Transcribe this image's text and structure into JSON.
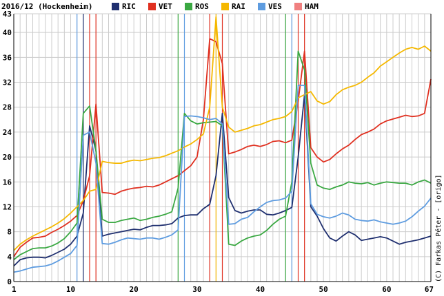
{
  "chart_data": {
    "type": "line",
    "title": "2016/12 (Hockenheim)",
    "credit": "(C) Farkas Péter - [origo]",
    "xlim": [
      1,
      67
    ],
    "ylim": [
      0,
      43
    ],
    "x_ticks": [
      1,
      10,
      20,
      30,
      40,
      50,
      60,
      67
    ],
    "y_ticks": [
      0,
      4,
      8,
      12,
      16,
      20,
      24,
      28,
      32,
      36,
      40,
      43
    ],
    "grid": true,
    "legend_position": "top",
    "series": [
      {
        "name": "RIC",
        "color": "#1f2f6f",
        "vlines": [
          12
        ],
        "values": [
          2.5,
          3.5,
          3.8,
          3.9,
          3.9,
          3.8,
          4.2,
          4.7,
          5.2,
          6.0,
          7.3,
          11.0,
          25.0,
          21.0,
          7.3,
          7.6,
          7.8,
          8.0,
          8.2,
          8.4,
          8.3,
          8.7,
          9.0,
          9.0,
          9.1,
          9.3,
          10.2,
          10.6,
          10.7,
          10.7,
          11.7,
          12.4,
          17.0,
          27.0,
          13.5,
          11.4,
          11.0,
          11.3,
          11.5,
          11.5,
          10.8,
          10.7,
          11.0,
          11.4,
          11.9,
          20.0,
          30.0,
          12.0,
          10.5,
          8.5,
          7.0,
          6.5,
          7.3,
          8.0,
          7.5,
          6.6,
          6.8,
          7.0,
          7.2,
          7.0,
          6.5,
          6.0,
          6.3,
          6.5,
          6.7,
          7.0,
          7.3
        ]
      },
      {
        "name": "VET",
        "color": "#e03020",
        "vlines": [
          13,
          14,
          32,
          34,
          46,
          47
        ],
        "values": [
          4.0,
          5.5,
          6.3,
          7.0,
          7.1,
          7.3,
          7.9,
          8.4,
          9.0,
          9.7,
          10.6,
          13.0,
          17.0,
          28.5,
          14.3,
          14.2,
          14.0,
          14.5,
          14.8,
          15.0,
          15.1,
          15.3,
          15.2,
          15.5,
          16.0,
          16.5,
          17.0,
          17.8,
          18.6,
          20.0,
          26.0,
          39.0,
          38.5,
          35.0,
          20.5,
          20.8,
          21.2,
          21.7,
          21.9,
          21.7,
          22.0,
          22.5,
          22.6,
          22.3,
          22.7,
          29.0,
          37.0,
          21.5,
          20.0,
          19.2,
          19.6,
          20.5,
          21.3,
          21.9,
          22.8,
          23.6,
          24.0,
          24.5,
          25.3,
          25.8,
          26.1,
          26.4,
          26.7,
          26.5,
          26.6,
          27.0,
          32.5
        ]
      },
      {
        "name": "ROS",
        "color": "#3aa842",
        "vlines": [
          27,
          44
        ],
        "values": [
          3.5,
          4.3,
          4.8,
          5.3,
          5.4,
          5.4,
          5.7,
          6.2,
          6.9,
          8.0,
          9.4,
          27.0,
          28.2,
          21.0,
          10.0,
          9.5,
          9.5,
          9.8,
          10.0,
          10.2,
          9.8,
          10.0,
          10.3,
          10.5,
          10.8,
          11.2,
          15.0,
          27.0,
          25.8,
          25.3,
          25.5,
          25.6,
          25.7,
          25.0,
          6.0,
          5.8,
          6.5,
          7.0,
          7.3,
          7.5,
          8.2,
          9.2,
          10.0,
          10.5,
          16.0,
          37.0,
          34.0,
          19.0,
          15.5,
          15.0,
          14.8,
          15.2,
          15.5,
          16.0,
          15.8,
          15.7,
          15.9,
          15.5,
          15.8,
          16.0,
          15.9,
          15.8,
          15.8,
          15.5,
          16.0,
          16.3,
          15.8
        ]
      },
      {
        "name": "RAI",
        "color": "#f5b800",
        "vlines": [
          33
        ],
        "values": [
          5.0,
          6.0,
          6.7,
          7.3,
          7.8,
          8.3,
          8.8,
          9.4,
          10.1,
          11.0,
          12.0,
          13.0,
          14.5,
          14.8,
          19.3,
          19.1,
          19.0,
          19.0,
          19.3,
          19.5,
          19.4,
          19.6,
          19.8,
          19.9,
          20.2,
          20.6,
          21.0,
          21.6,
          22.1,
          22.8,
          23.7,
          28.0,
          42.5,
          28.0,
          24.8,
          24.0,
          24.3,
          24.6,
          25.0,
          25.2,
          25.6,
          26.0,
          26.2,
          26.5,
          27.3,
          29.5,
          30.0,
          30.5,
          29.0,
          28.5,
          28.9,
          30.0,
          30.8,
          31.2,
          31.5,
          32.0,
          32.8,
          33.5,
          34.6,
          35.3,
          36.0,
          36.7,
          37.3,
          37.6,
          37.3,
          37.8,
          37.0
        ]
      },
      {
        "name": "VES",
        "color": "#5e9ce0",
        "vlines": [
          11,
          28,
          45
        ],
        "values": [
          1.5,
          1.7,
          2.0,
          2.3,
          2.4,
          2.5,
          2.8,
          3.3,
          3.9,
          4.5,
          5.8,
          23.5,
          24.0,
          19.0,
          6.1,
          6.0,
          6.3,
          6.7,
          7.0,
          6.9,
          6.8,
          7.0,
          7.0,
          6.8,
          7.1,
          7.5,
          8.3,
          26.5,
          26.6,
          26.5,
          26.3,
          26.0,
          26.2,
          25.3,
          9.2,
          9.3,
          10.0,
          10.3,
          11.2,
          12.0,
          12.7,
          13.0,
          13.1,
          13.4,
          14.5,
          31.5,
          31.5,
          12.5,
          10.8,
          10.4,
          10.2,
          10.5,
          11.0,
          10.7,
          10.0,
          9.8,
          9.7,
          9.9,
          9.6,
          9.4,
          9.2,
          9.4,
          9.7,
          10.4,
          11.3,
          12.1,
          13.4
        ]
      },
      {
        "name": "HAM",
        "color": "#f08080",
        "vlines": [],
        "values": []
      }
    ]
  }
}
